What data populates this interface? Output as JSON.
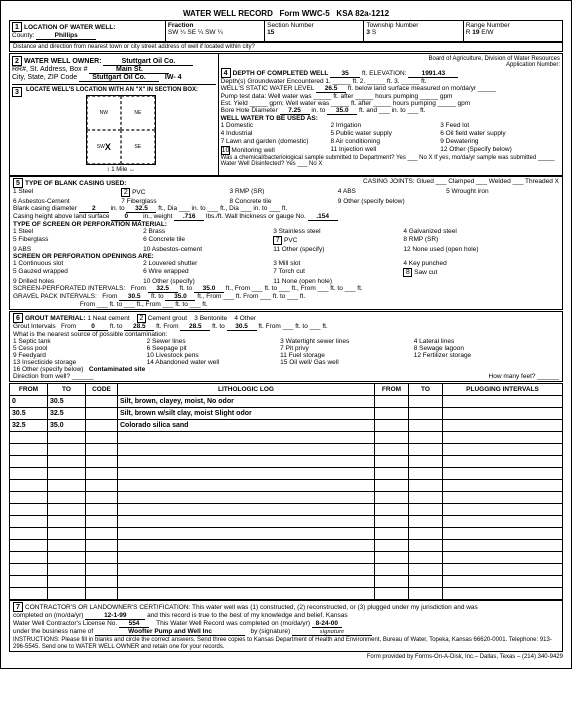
{
  "form": {
    "title": "WATER WELL RECORD",
    "form_no": "Form WWC-5",
    "ksa": "KSA 82a-1212"
  },
  "header": {
    "county_label": "County:",
    "county": "Phillips",
    "fraction": "SW ¼ SE ¼ SW ¼",
    "section_label": "Section Number",
    "section": "15",
    "township_label": "Township Number",
    "township": "3",
    "township_dir": "S",
    "range_label": "Range Number",
    "range": "19",
    "range_dir": "E/W",
    "distance_q": "Distance and direction from nearest town or city street address of well if located within city?"
  },
  "owner": {
    "heading": "WATER WELL OWNER:",
    "name": "Stuttgart Oil Co.",
    "addr_label": "RR#, St. Address, Box #",
    "addr": "Main St.",
    "city_label": "City, State, ZIP Code",
    "city": "Stuttgart Oil Co.",
    "id": "IW- 4",
    "board": "Board of Agriculture, Division of Water Resources",
    "appno_label": "Application Number:"
  },
  "locate": {
    "heading": "LOCATE WELL'S LOCATION WITH AN \"X\" IN SECTION BOX:",
    "mark": "X",
    "dirs": [
      "N",
      "NW",
      "NE",
      "W",
      "SW",
      "SE",
      "S"
    ]
  },
  "depth": {
    "heading": "DEPTH OF COMPLETED WELL",
    "depth": "35",
    "elev_label": "ft. ELEVATION:",
    "elev": "1991.43",
    "gw_enc": "Depth(s) Groundwater Encountered   1. _____ ft.   2. _____ ft.   3. _____ ft.",
    "static_label": "WELL'S STATIC WATER LEVEL",
    "static": "26.5",
    "static_tail": "ft. below land surface measured on mo/da/yr _____",
    "pump_test": "Pump test data:  Well water was _____ ft. after _____ hours pumping _____ gpm",
    "est_yield": "Est. Yield _____ gpm;  Well water was _____ ft. after _____ hours pumping _____ gpm",
    "bore_label": "Bore Hole Diameter",
    "bore": "7.25",
    "bore_to": "35.0",
    "use_heading": "WELL WATER TO BE USED AS:",
    "uses": [
      "1  Domestic",
      "2  Irrigation",
      "3  Feed lot",
      "4  Industrial",
      "5  Public water supply",
      "6  Oil field water supply",
      "7  Lawn and garden (domestic)",
      "8  Air conditioning",
      "9  Dewatering",
      "10  Monitoring well",
      "11  Injection well",
      "12  Other (Specify below)"
    ],
    "use_selected": "10",
    "chem_q": "Was a chemical/bacteriological sample submitted to Department?  Yes ___  No X   If yes, mo/da/yr sample was submitted _____   Water Well Disinfected?  Yes ___  No X"
  },
  "casing": {
    "heading": "TYPE OF BLANK CASING USED:",
    "types": [
      "1  Steel",
      "2  PVC",
      "3  RMP (SR)",
      "4  ABS",
      "5  Wrought iron",
      "6  Asbestos-Cement",
      "7  Fiberglass",
      "8  Concrete tile",
      "9  Other (specify below)"
    ],
    "type_sel": "2",
    "joints": "CASING JOINTS:  Glued ___  Clamped ___  Welded ___  Threaded  X",
    "blank_dia": "2",
    "blank_to": "32.5",
    "height_above": "0",
    "weight": ".716",
    "wall": ".154",
    "screen_heading": "TYPE OF SCREEN OR PERFORATION MATERIAL:",
    "screen_types": [
      "1  Steel",
      "2  Brass",
      "3  Stainless steel",
      "4  Galvanized steel",
      "5  Fiberglass",
      "6  Concrete tile",
      "7  PVC",
      "8  RMP (SR)",
      "9  ABS",
      "10  Asbestos-cement",
      "11  Other (specify)",
      "12  None used (open hole)"
    ],
    "screen_sel": "7",
    "open_heading": "SCREEN OR PERFORATION OPENINGS ARE:",
    "openings": [
      "1  Continuous slot",
      "2  Louvered shutter",
      "3  Mill slot",
      "4  Key punched",
      "5  Gauzed wrapped",
      "6  Wire wrapped",
      "7  Torch cut",
      "8  Saw cut",
      "9  Drilled holes",
      "10  Other (specify)",
      "11  None (open hole)"
    ],
    "open_sel": "8",
    "perf_from": "32.5",
    "perf_to": "35.0",
    "gravel_from": "30.5",
    "gravel_to": "35.0"
  },
  "grout": {
    "heading": "GROUT MATERIAL:",
    "types": [
      "1  Neat cement",
      "2  Cement grout",
      "3  Bentonite",
      "4  Other"
    ],
    "sel": "2",
    "int1_from": "0",
    "int1_to": "28.5",
    "int2_from": "28.5",
    "int2_to": "30.5",
    "contam_q": "What is the nearest source of possible contamination:",
    "contams": [
      "1  Septic tank",
      "2  Sewer lines",
      "3  Watertight sewer lines",
      "4  Lateral lines",
      "5  Cess pool",
      "6  Seepage pit",
      "7  Pit privy",
      "8  Sewage lagoon",
      "9  Feedyard",
      "10  Livestock pens",
      "11  Fuel storage",
      "12  Fertilizer storage",
      "13  Insecticide storage",
      "14  Abandoned water well",
      "15  Oil well/ Gas well",
      "16  Other (specify below)"
    ],
    "contam_other": "Contaminated site",
    "dir_q": "Direction from well?",
    "feet_q": "How many feet?"
  },
  "log": {
    "from_h": "FROM",
    "to_h": "TO",
    "code_h": "CODE",
    "lith_h": "LITHOLOGIC LOG",
    "plug_h": "PLUGGING INTERVALS",
    "rows": [
      {
        "from": "0",
        "to": "30.5",
        "lith": "Silt, brown, clayey, moist, No odor"
      },
      {
        "from": "30.5",
        "to": "32.5",
        "lith": "Silt, brown w/silt clay, moist Slight odor"
      },
      {
        "from": "32.5",
        "to": "35.0",
        "lith": "Colorado silica sand"
      }
    ],
    "blank_row_count": 14
  },
  "cert": {
    "heading": "CONTRACTOR'S OR LANDOWNER'S CERTIFICATION:  This water well was (1) constructed, (2) reconstructed, or (3) plugged under my jurisdiction and was",
    "comp_date_label": "completed on (mo/da/yr)",
    "comp_date": "12-1-99",
    "true_stmt": "and this record is true to the best of my knowledge and belief. Kansas",
    "lic_label": "Water Well Contractor's License No.",
    "lic": "554",
    "rec_date_label": "This Water Well Record was completed on (mo/da/yr)",
    "rec_date": "8-24-00",
    "biz_label": "under the business name of",
    "biz": "Woofter Pump and Well Inc",
    "sig_label": "by (signature)",
    "sig": "signature",
    "instr": "INSTRUCTIONS:  Please fill in blanks and circle the correct answers.  Send three copies to Kansas Department of Health and Environment, Bureau of Water, Topeka, Kansas 66620-0001.  Telephone: 913-296-5545.  Send one to WATER WELL OWNER and retain one for your records.",
    "footer": "Form provided by Forms-On-A-Disk, Inc.– Dallas, Texas –   (214) 340-9429"
  }
}
